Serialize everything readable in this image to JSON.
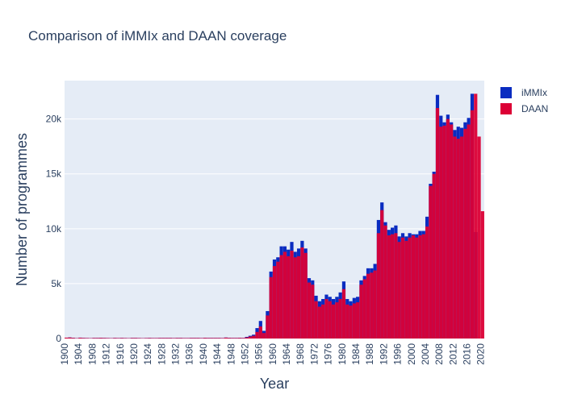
{
  "chart_data": {
    "type": "bar",
    "title": "Comparison of iMMIx and DAAN coverage",
    "xlabel": "Year",
    "ylabel": "Number of programmes",
    "xlim": [
      1900,
      2021
    ],
    "ylim": [
      0,
      23500
    ],
    "grid": true,
    "legend_position": "top-right",
    "x_ticks": [
      1900,
      1904,
      1908,
      1912,
      1916,
      1920,
      1924,
      1928,
      1932,
      1936,
      1940,
      1944,
      1948,
      1952,
      1956,
      1960,
      1964,
      1968,
      1972,
      1976,
      1980,
      1984,
      1988,
      1992,
      1996,
      2000,
      2004,
      2008,
      2012,
      2016,
      2020
    ],
    "y_ticks": [
      0,
      5000,
      10000,
      15000,
      20000
    ],
    "y_tick_labels": [
      "0",
      "5k",
      "10k",
      "15k",
      "20k"
    ],
    "series": [
      {
        "name": "iMMIx",
        "color": "#0a2cc0",
        "years": [
          1900,
          1901,
          1902,
          1903,
          1904,
          1905,
          1906,
          1907,
          1908,
          1909,
          1910,
          1911,
          1912,
          1913,
          1914,
          1915,
          1916,
          1917,
          1918,
          1919,
          1920,
          1921,
          1922,
          1923,
          1924,
          1925,
          1926,
          1927,
          1928,
          1929,
          1930,
          1931,
          1932,
          1933,
          1934,
          1935,
          1936,
          1937,
          1938,
          1939,
          1940,
          1941,
          1942,
          1943,
          1944,
          1945,
          1946,
          1947,
          1948,
          1949,
          1950,
          1951,
          1952,
          1953,
          1954,
          1955,
          1956,
          1957,
          1958,
          1959,
          1960,
          1961,
          1962,
          1963,
          1964,
          1965,
          1966,
          1967,
          1968,
          1969,
          1970,
          1971,
          1972,
          1973,
          1974,
          1975,
          1976,
          1977,
          1978,
          1979,
          1980,
          1981,
          1982,
          1983,
          1984,
          1985,
          1986,
          1987,
          1988,
          1989,
          1990,
          1991,
          1992,
          1993,
          1994,
          1995,
          1996,
          1997,
          1998,
          1999,
          2000,
          2001,
          2002,
          2003,
          2004,
          2005,
          2006,
          2007,
          2008,
          2009,
          2010,
          2011,
          2012,
          2013,
          2014,
          2015,
          2016,
          2017,
          2018,
          2019,
          2020
        ],
        "values": [
          60,
          100,
          70,
          40,
          80,
          60,
          50,
          40,
          60,
          60,
          70,
          60,
          50,
          40,
          60,
          50,
          60,
          50,
          40,
          60,
          60,
          50,
          40,
          50,
          60,
          50,
          50,
          60,
          60,
          60,
          60,
          50,
          60,
          60,
          50,
          50,
          60,
          60,
          60,
          50,
          70,
          60,
          60,
          60,
          60,
          50,
          90,
          70,
          60,
          60,
          70,
          60,
          150,
          250,
          350,
          950,
          1600,
          700,
          2500,
          6100,
          7200,
          7400,
          8400,
          8400,
          8100,
          8800,
          7900,
          8200,
          8900,
          8200,
          5500,
          5300,
          3900,
          3400,
          3600,
          4000,
          3800,
          3600,
          3800,
          4200,
          5200,
          3600,
          3400,
          3700,
          3800,
          5300,
          5700,
          6400,
          6400,
          6800,
          10800,
          12400,
          10600,
          9900,
          10100,
          10300,
          9300,
          9600,
          9300,
          9600,
          9500,
          9500,
          9800,
          9800,
          11100,
          14100,
          15200,
          22200,
          20300,
          19700,
          20400,
          19700,
          19000,
          19300,
          19200,
          19700,
          20100,
          22300,
          9700,
          0,
          0
        ]
      },
      {
        "name": "DAAN",
        "color": "#dc0035",
        "years": [
          1900,
          1901,
          1902,
          1903,
          1904,
          1905,
          1906,
          1907,
          1908,
          1909,
          1910,
          1911,
          1912,
          1913,
          1914,
          1915,
          1916,
          1917,
          1918,
          1919,
          1920,
          1921,
          1922,
          1923,
          1924,
          1925,
          1926,
          1927,
          1928,
          1929,
          1930,
          1931,
          1932,
          1933,
          1934,
          1935,
          1936,
          1937,
          1938,
          1939,
          1940,
          1941,
          1942,
          1943,
          1944,
          1945,
          1946,
          1947,
          1948,
          1949,
          1950,
          1951,
          1952,
          1953,
          1954,
          1955,
          1956,
          1957,
          1958,
          1959,
          1960,
          1961,
          1962,
          1963,
          1964,
          1965,
          1966,
          1967,
          1968,
          1969,
          1970,
          1971,
          1972,
          1973,
          1974,
          1975,
          1976,
          1977,
          1978,
          1979,
          1980,
          1981,
          1982,
          1983,
          1984,
          1985,
          1986,
          1987,
          1988,
          1989,
          1990,
          1991,
          1992,
          1993,
          1994,
          1995,
          1996,
          1997,
          1998,
          1999,
          2000,
          2001,
          2002,
          2003,
          2004,
          2005,
          2006,
          2007,
          2008,
          2009,
          2010,
          2011,
          2012,
          2013,
          2014,
          2015,
          2016,
          2017,
          2018,
          2019,
          2020
        ],
        "values": [
          80,
          90,
          60,
          30,
          70,
          50,
          40,
          30,
          50,
          50,
          60,
          50,
          40,
          30,
          50,
          40,
          50,
          40,
          30,
          50,
          50,
          40,
          30,
          40,
          50,
          40,
          40,
          50,
          50,
          50,
          50,
          40,
          50,
          50,
          40,
          40,
          50,
          50,
          50,
          40,
          60,
          50,
          50,
          50,
          50,
          40,
          80,
          60,
          50,
          50,
          60,
          50,
          100,
          180,
          250,
          600,
          1100,
          500,
          2100,
          5600,
          6600,
          7000,
          7600,
          7900,
          7500,
          8000,
          7400,
          7500,
          8300,
          7800,
          5100,
          4900,
          3400,
          2900,
          3100,
          3600,
          3400,
          3100,
          3300,
          3600,
          4500,
          3100,
          3000,
          3200,
          3300,
          4900,
          5400,
          5900,
          6000,
          6200,
          9600,
          11700,
          10300,
          9400,
          9500,
          9600,
          8800,
          9200,
          8900,
          9200,
          9400,
          9200,
          9400,
          9500,
          10200,
          13900,
          15000,
          21000,
          19300,
          19400,
          20000,
          19500,
          18400,
          18200,
          18400,
          19100,
          19500,
          20800,
          22300,
          18400,
          11600
        ]
      }
    ]
  }
}
